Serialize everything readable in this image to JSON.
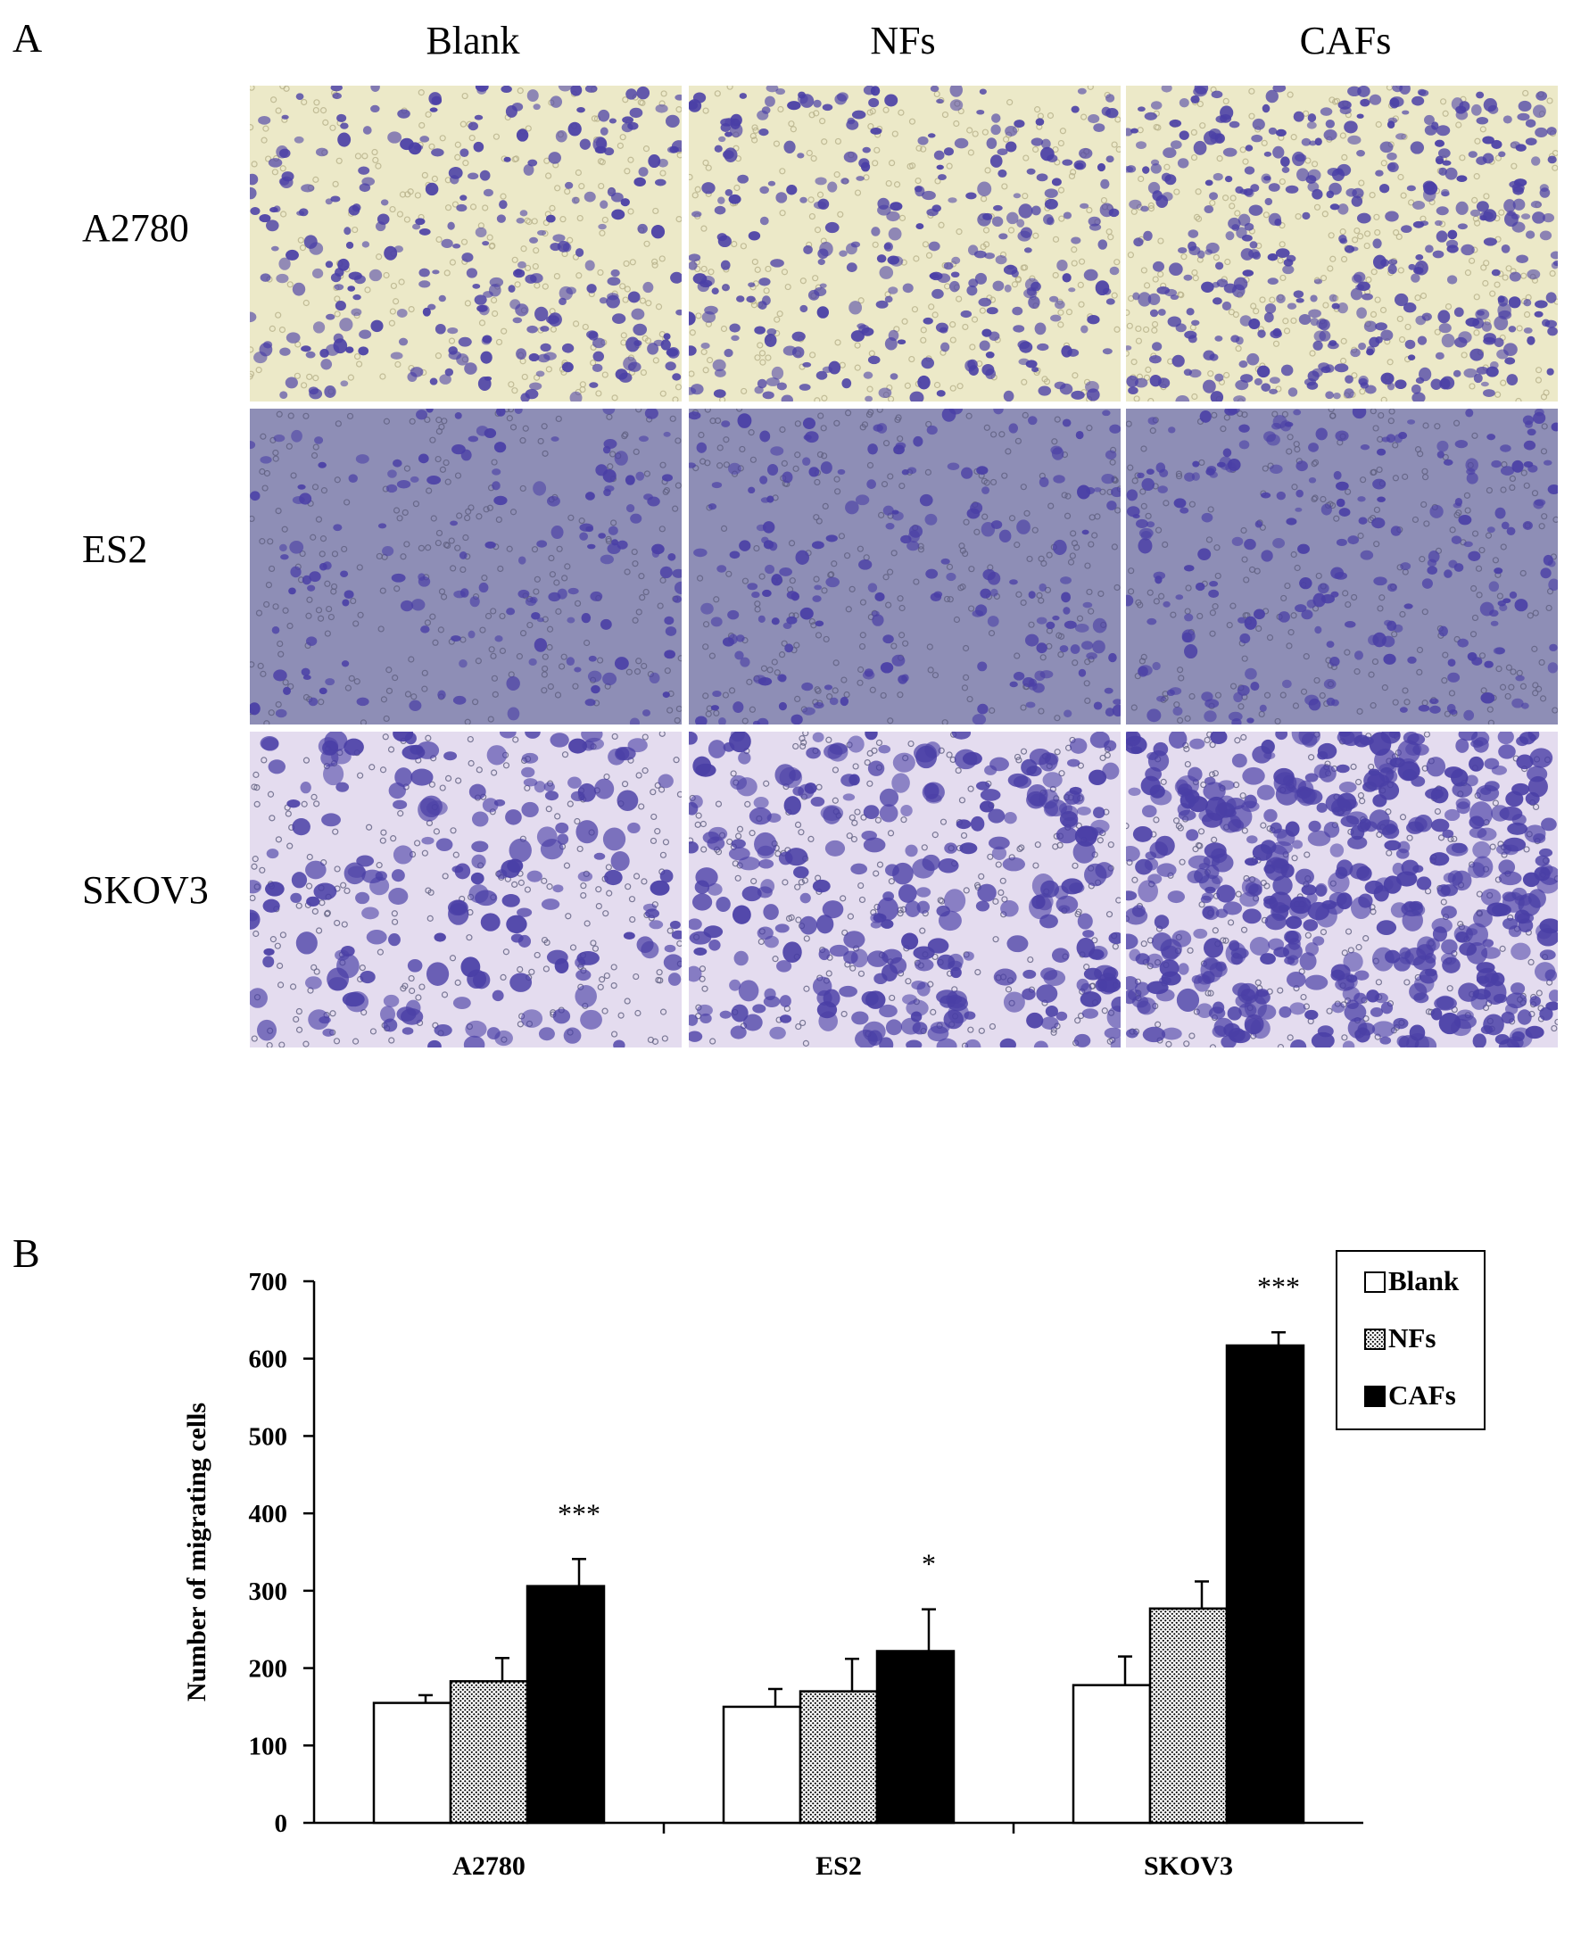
{
  "panels": {
    "a_label": "A",
    "b_label": "B"
  },
  "micrographs": {
    "columns": [
      "Blank",
      "NFs",
      "CAFs"
    ],
    "rows": [
      "A2780",
      "ES2",
      "SKOV3"
    ],
    "backgrounds": [
      "#ece9c8",
      "#8e8eb6",
      "#e4dcef"
    ],
    "cell_color": "#4a3fa6",
    "relative_density": [
      [
        0.55,
        0.6,
        0.85
      ],
      [
        0.3,
        0.38,
        0.45
      ],
      [
        0.35,
        0.55,
        0.95
      ]
    ]
  },
  "chart_data": {
    "type": "bar",
    "categories": [
      "A2780",
      "ES2",
      "SKOV3"
    ],
    "series": [
      {
        "name": "Blank",
        "values": [
          155,
          150,
          178
        ],
        "errors": [
          10,
          23,
          37
        ],
        "fill": "open"
      },
      {
        "name": "NFs",
        "values": [
          183,
          170,
          277
        ],
        "errors": [
          30,
          42,
          35
        ],
        "fill": "dotted"
      },
      {
        "name": "CAFs",
        "values": [
          306,
          222,
          617
        ],
        "errors": [
          35,
          54,
          17
        ],
        "fill": "solid"
      }
    ],
    "significance": [
      "***",
      "*",
      "***"
    ],
    "ylabel": "Number of migrating cells",
    "ylim": [
      0,
      700
    ],
    "yticks": [
      "0",
      "100",
      "200",
      "300",
      "400",
      "500",
      "600",
      "700"
    ],
    "legend_position": "top-right",
    "grid": false
  }
}
